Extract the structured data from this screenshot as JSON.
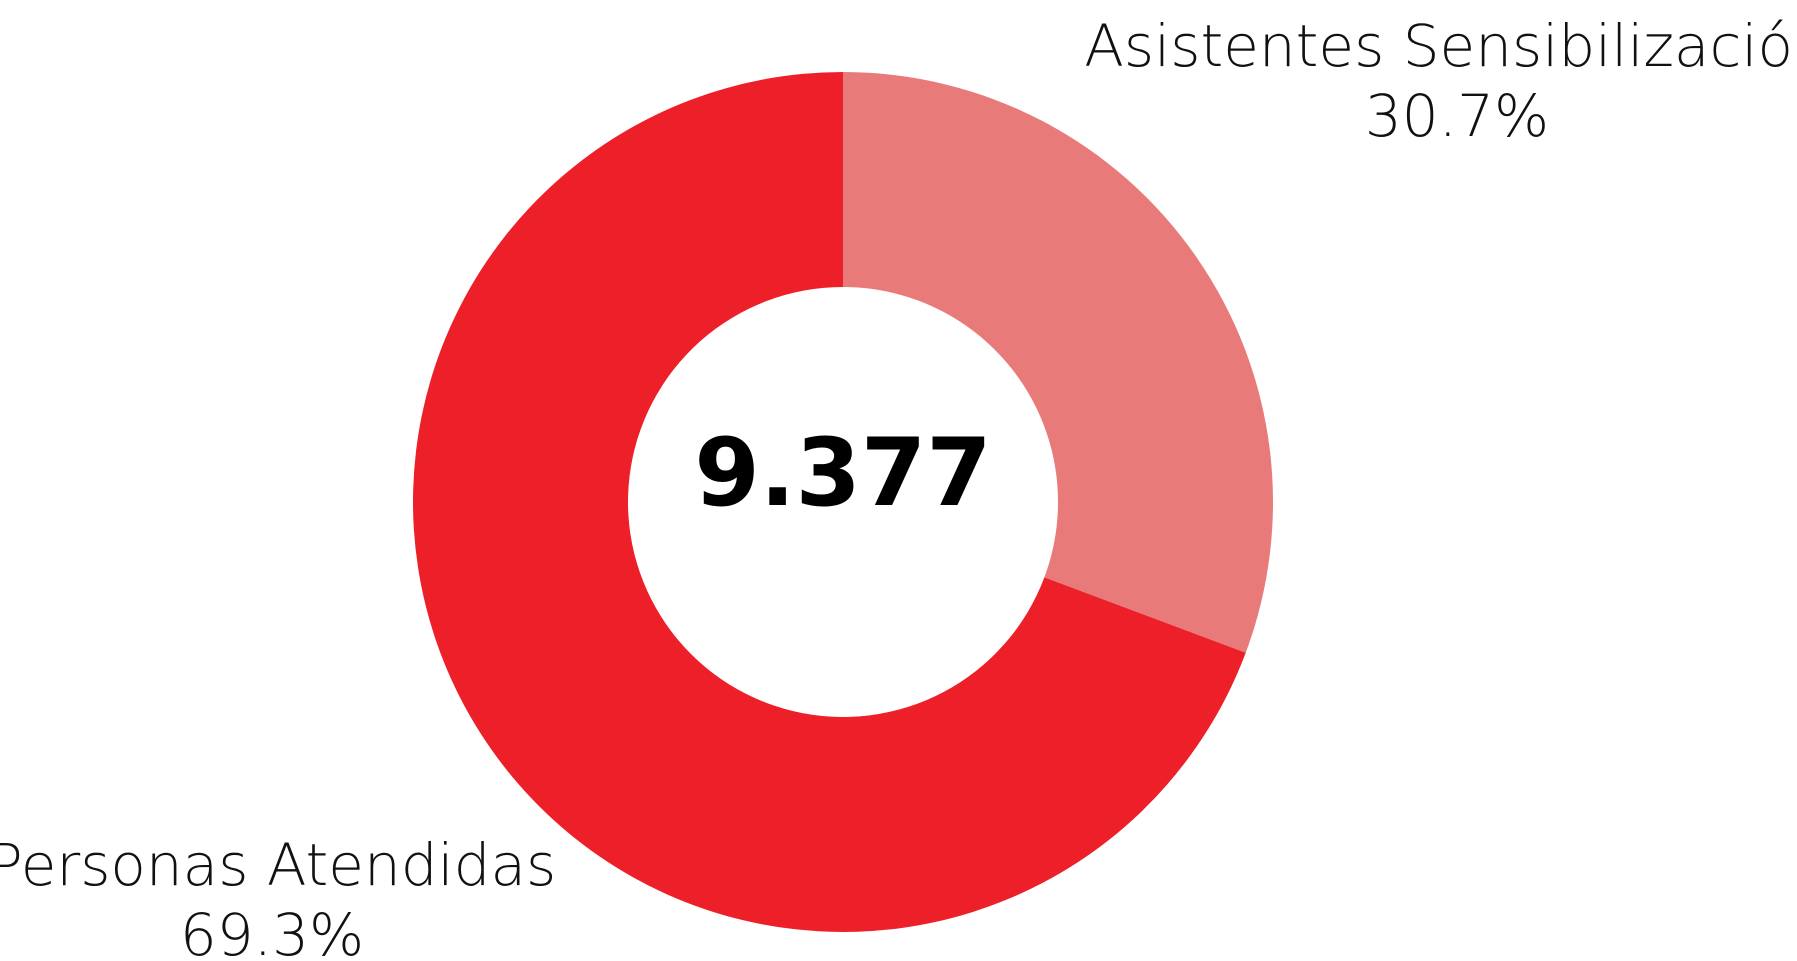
{
  "chart_data": {
    "type": "pie",
    "variant": "donut",
    "center_label": "9.377",
    "slices": [
      {
        "name": "Asistentes Sensibilización",
        "value": 30.7,
        "value_label": "30.7%",
        "color": "#E97A7A"
      },
      {
        "name": "Personas Atendidas",
        "value": 69.3,
        "value_label": "69.3%",
        "color": "#ED1F29"
      }
    ],
    "start_angle_deg": 0,
    "direction": "clockwise",
    "legend": "none"
  }
}
